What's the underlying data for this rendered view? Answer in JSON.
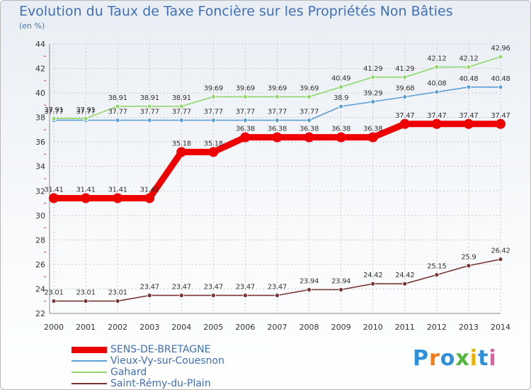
{
  "colors": {
    "title": "#3f6fb8",
    "grid": "#c8c8c8",
    "axis": "#888888"
  },
  "chart_data": {
    "type": "line",
    "title": "Evolution du Taux de Taxe Foncière sur les Propriétés Non Bâties",
    "ylabel": "(en %)",
    "xlabel": "",
    "ylim": [
      22,
      44
    ],
    "yticks": [
      22,
      24,
      26,
      28,
      30,
      32,
      34,
      36,
      38,
      40,
      42,
      44
    ],
    "grid": true,
    "x": [
      "2000",
      "2001",
      "2002",
      "2003",
      "2004",
      "2005",
      "2006",
      "2007",
      "2008",
      "2009",
      "2010",
      "2011",
      "2012",
      "2013",
      "2014"
    ],
    "series": [
      {
        "name": "SENS-DE-BRETAGNE",
        "color": "#ee0000",
        "values": [
          31.41,
          31.41,
          31.41,
          31.41,
          35.18,
          35.18,
          36.38,
          36.38,
          36.38,
          36.38,
          36.38,
          37.47,
          37.47,
          37.47,
          37.47
        ],
        "labels": [
          "31.41",
          "31.41",
          "31.41",
          "31.41",
          "35.18",
          "35.18",
          "36.38",
          "36.38",
          "36.38",
          "36.38",
          "36.38",
          "37.47",
          "37.47",
          "37.47",
          "37.47"
        ]
      },
      {
        "name": "Vieux-Vy-sur-Couesnon",
        "color": "#5c9fd5",
        "values": [
          37.77,
          37.77,
          37.77,
          37.77,
          37.77,
          37.77,
          37.77,
          37.77,
          37.77,
          38.9,
          39.29,
          39.68,
          40.08,
          40.48,
          40.48
        ],
        "labels": [
          "37.77",
          "37.77",
          "37.77",
          "37.77",
          "37.77",
          "37.77",
          "37.77",
          "37.77",
          "37.77",
          "38.9",
          "39.29",
          "39.68",
          "40.08",
          "40.48",
          "40.48"
        ]
      },
      {
        "name": "Gahard",
        "color": "#8fd86a",
        "values": [
          37.91,
          37.91,
          38.91,
          38.91,
          38.91,
          39.69,
          39.69,
          39.69,
          39.69,
          40.49,
          41.29,
          41.29,
          42.12,
          42.12,
          42.96
        ],
        "labels": [
          "37.91",
          "37.91",
          "38.91",
          "38.91",
          "38.91",
          "39.69",
          "39.69",
          "39.69",
          "39.69",
          "40.49",
          "41.29",
          "41.29",
          "42.12",
          "42.12",
          "42.96"
        ]
      },
      {
        "name": "Saint-Rémy-du-Plain",
        "color": "#7a3434",
        "values": [
          23.01,
          23.01,
          23.01,
          23.47,
          23.47,
          23.47,
          23.47,
          23.47,
          23.94,
          23.94,
          24.42,
          24.42,
          25.15,
          25.9,
          26.42
        ],
        "labels": [
          "23.01",
          "23.01",
          "23.01",
          "23.47",
          "23.47",
          "23.47",
          "23.47",
          "23.47",
          "23.94",
          "23.94",
          "24.42",
          "24.42",
          "25.15",
          "25.9",
          "26.42"
        ]
      }
    ],
    "legend_position": "bottom-left"
  },
  "brand": {
    "letters": [
      "P",
      "r",
      "o",
      "x",
      "i",
      "t",
      "i"
    ],
    "colors": [
      "#2f8fd8",
      "#f07c1c",
      "#2f8fd8",
      "#4fb83c",
      "#e8b400",
      "#2f8fd8",
      "#e05fa0"
    ]
  }
}
